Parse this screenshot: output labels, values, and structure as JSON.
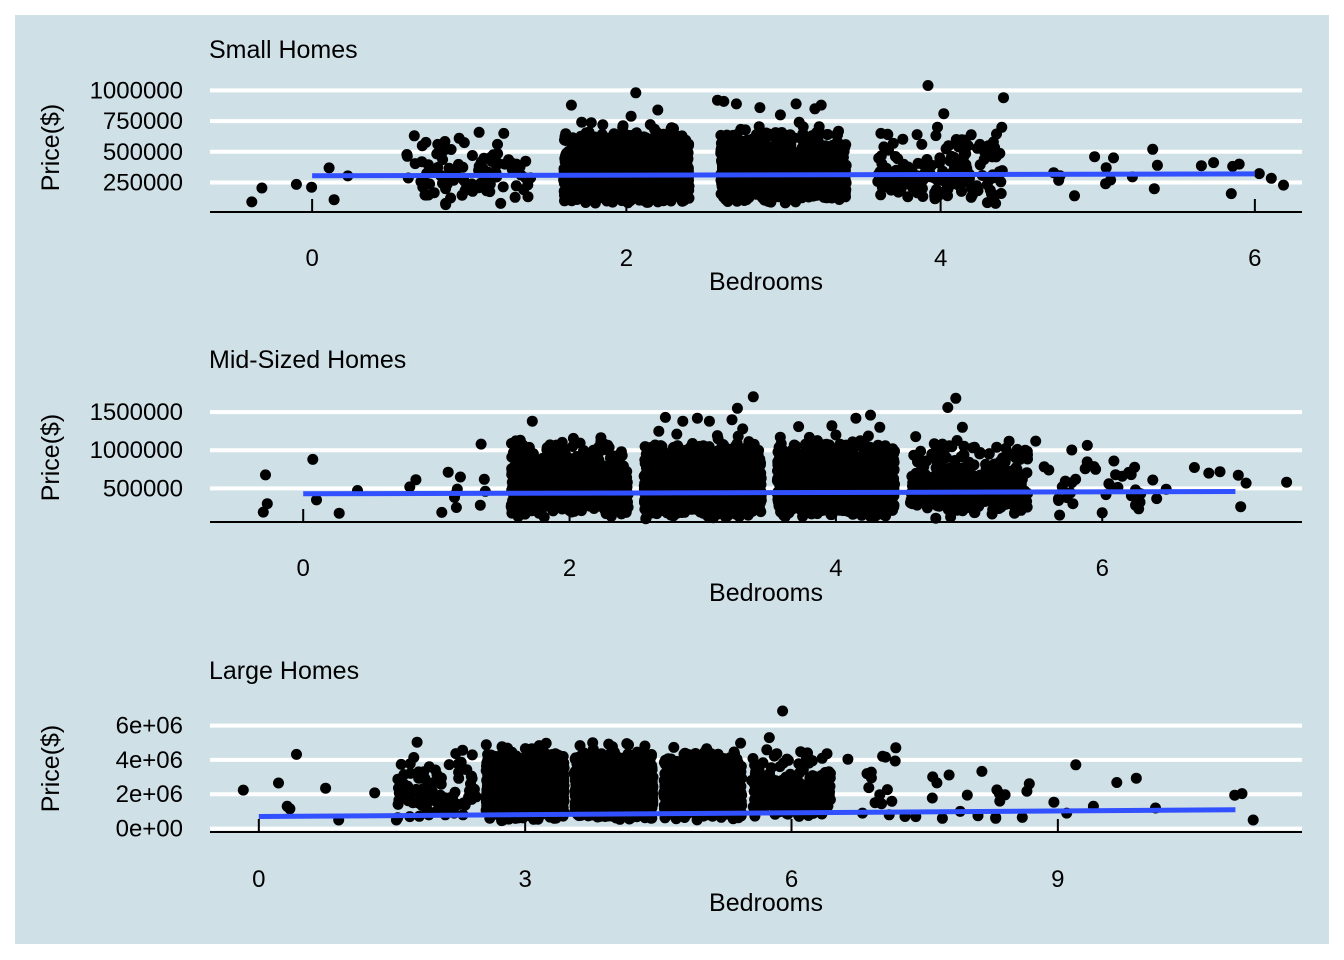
{
  "theme": {
    "panel_background": "#cfe0e7",
    "grid_color": "#ffffff",
    "point_color": "#000000",
    "trend_color": "#3150ff",
    "axis_color": "#000000"
  },
  "chart_data": [
    {
      "type": "scatter",
      "title": "Small Homes",
      "xlabel": "Bedrooms",
      "ylabel": "Price($)",
      "x_ticks": [
        "0",
        "2",
        "4",
        "6"
      ],
      "x_tick_values": [
        0,
        2,
        4,
        6
      ],
      "y_ticks": [
        "250000",
        "500000",
        "750000",
        "1000000"
      ],
      "y_tick_values": [
        250000,
        500000,
        750000,
        1000000
      ],
      "xlim": [
        -0.65,
        6.3
      ],
      "ylim": [
        10000,
        1060000
      ],
      "grid": true,
      "jitter": 0.4,
      "category_counts": [
        [
          0,
          4
        ],
        [
          1,
          90
        ],
        [
          2,
          1300
        ],
        [
          3,
          1200
        ],
        [
          4,
          160
        ],
        [
          5,
          5
        ],
        [
          6,
          6
        ]
      ],
      "trend": {
        "x": [
          0,
          6
        ],
        "y": [
          305000,
          320000
        ]
      },
      "points": [
        [
          -0.32,
          205000
        ],
        [
          -0.1,
          235000
        ],
        [
          0.14,
          110000
        ],
        [
          0.65,
          630000
        ],
        [
          0.8,
          560000
        ],
        [
          1.02,
          470000
        ],
        [
          1.18,
          560000
        ],
        [
          1.22,
          650000
        ],
        [
          1.3,
          400000
        ],
        [
          0.85,
          70000
        ],
        [
          1.2,
          80000
        ],
        [
          1.65,
          880000
        ],
        [
          1.85,
          720000
        ],
        [
          2.06,
          980000
        ],
        [
          2.03,
          790000
        ],
        [
          2.2,
          840000
        ],
        [
          2.3,
          690000
        ],
        [
          2.58,
          920000
        ],
        [
          2.62,
          910000
        ],
        [
          2.7,
          890000
        ],
        [
          2.85,
          860000
        ],
        [
          2.98,
          800000
        ],
        [
          3.08,
          890000
        ],
        [
          3.2,
          850000
        ],
        [
          3.24,
          880000
        ],
        [
          3.1,
          740000
        ],
        [
          3.62,
          650000
        ],
        [
          3.85,
          640000
        ],
        [
          3.88,
          560000
        ],
        [
          3.92,
          1040000
        ],
        [
          3.98,
          700000
        ],
        [
          4.02,
          810000
        ],
        [
          4.1,
          600000
        ],
        [
          4.25,
          560000
        ],
        [
          4.32,
          500000
        ],
        [
          4.4,
          940000
        ],
        [
          4.35,
          80000
        ],
        [
          4.72,
          330000
        ],
        [
          4.76,
          305000
        ],
        [
          4.98,
          460000
        ],
        [
          5.05,
          240000
        ],
        [
          5.1,
          450000
        ],
        [
          5.35,
          520000
        ],
        [
          5.36,
          200000
        ],
        [
          5.38,
          390000
        ],
        [
          5.85,
          160000
        ],
        [
          5.9,
          400000
        ]
      ]
    },
    {
      "type": "scatter",
      "title": "Mid-Sized Homes",
      "xlabel": "Bedrooms",
      "ylabel": "Price($)",
      "x_ticks": [
        "0",
        "2",
        "4",
        "6"
      ],
      "x_tick_values": [
        0,
        2,
        4,
        6
      ],
      "y_ticks": [
        "500000",
        "1000000",
        "1500000"
      ],
      "y_tick_values": [
        500000,
        1000000,
        1500000
      ],
      "xlim": [
        -0.7,
        7.5
      ],
      "ylim": [
        60000,
        1750000
      ],
      "grid": true,
      "jitter": 0.44,
      "category_counts": [
        [
          0,
          3
        ],
        [
          1,
          8
        ],
        [
          2,
          750
        ],
        [
          3,
          1400
        ],
        [
          4,
          1400
        ],
        [
          5,
          420
        ],
        [
          6,
          25
        ],
        [
          7,
          4
        ]
      ],
      "trend": {
        "x": [
          0,
          7
        ],
        "y": [
          430000,
          460000
        ]
      },
      "points": [
        [
          -0.3,
          190000
        ],
        [
          -0.27,
          300000
        ],
        [
          0.1,
          350000
        ],
        [
          0.27,
          175000
        ],
        [
          0.8,
          520000
        ],
        [
          1.18,
          650000
        ],
        [
          1.36,
          620000
        ],
        [
          1.33,
          280000
        ],
        [
          1.15,
          250000
        ],
        [
          1.72,
          1380000
        ],
        [
          1.63,
          1130000
        ],
        [
          2.26,
          1080000
        ],
        [
          2.18,
          1000000
        ],
        [
          2.72,
          1430000
        ],
        [
          2.85,
          1380000
        ],
        [
          2.96,
          1420000
        ],
        [
          3.05,
          1380000
        ],
        [
          3.26,
          1550000
        ],
        [
          3.38,
          1700000
        ],
        [
          3.3,
          1280000
        ],
        [
          3.22,
          1400000
        ],
        [
          2.67,
          1250000
        ],
        [
          3.72,
          1310000
        ],
        [
          3.97,
          1320000
        ],
        [
          4.15,
          1420000
        ],
        [
          4.26,
          1460000
        ],
        [
          4.33,
          1300000
        ],
        [
          4.0,
          1200000
        ],
        [
          4.72,
          950000
        ],
        [
          4.8,
          1080000
        ],
        [
          4.84,
          1560000
        ],
        [
          4.9,
          1680000
        ],
        [
          4.95,
          1300000
        ],
        [
          5.15,
          950000
        ],
        [
          5.5,
          1120000
        ],
        [
          4.75,
          110000
        ],
        [
          5.68,
          150000
        ],
        [
          5.7,
          520000
        ],
        [
          5.8,
          620000
        ],
        [
          5.95,
          750000
        ],
        [
          6.05,
          560000
        ],
        [
          6.1,
          680000
        ],
        [
          6.15,
          660000
        ],
        [
          6.25,
          480000
        ],
        [
          6.38,
          610000
        ],
        [
          6.48,
          490000
        ],
        [
          6.25,
          280000
        ],
        [
          6.8,
          700000
        ],
        [
          7.08,
          570000
        ],
        [
          7.04,
          260000
        ],
        [
          6.0,
          180000
        ],
        [
          5.78,
          300000
        ]
      ]
    },
    {
      "type": "scatter",
      "title": "Large Homes",
      "xlabel": "Bedrooms",
      "ylabel": "Price($)",
      "x_ticks": [
        "0",
        "3",
        "6",
        "9"
      ],
      "x_tick_values": [
        0,
        3,
        6,
        9
      ],
      "y_ticks": [
        "0e+00",
        "2e+06",
        "4e+06",
        "6e+06"
      ],
      "y_tick_values": [
        0,
        2000000,
        4000000,
        6000000
      ],
      "xlim": [
        -0.55,
        11.75
      ],
      "ylim": [
        -200000,
        7200000
      ],
      "grid": true,
      "jitter": 0.44,
      "category_counts": [
        [
          0,
          3
        ],
        [
          1,
          2
        ],
        [
          2,
          80
        ],
        [
          3,
          1400
        ],
        [
          4,
          1600
        ],
        [
          5,
          700
        ],
        [
          6,
          240
        ],
        [
          7,
          14
        ],
        [
          8,
          10
        ],
        [
          9,
          4
        ],
        [
          10,
          2
        ],
        [
          11,
          2
        ]
      ],
      "trend": {
        "x": [
          0,
          11
        ],
        "y": [
          700000,
          1100000
        ]
      },
      "points": [
        [
          0.32,
          1300000
        ],
        [
          0.35,
          1150000
        ],
        [
          0.9,
          500000
        ],
        [
          1.55,
          500000
        ],
        [
          1.7,
          700000
        ],
        [
          1.9,
          1500000
        ],
        [
          2.0,
          1000000
        ],
        [
          2.1,
          800000
        ],
        [
          2.3,
          800000
        ],
        [
          2.45,
          1850000
        ],
        [
          1.8,
          3300000
        ],
        [
          2.25,
          1400000
        ],
        [
          2.2,
          900000
        ],
        [
          2.75,
          2950000
        ],
        [
          3.1,
          3650000
        ],
        [
          3.25,
          3800000
        ],
        [
          2.62,
          2300000
        ],
        [
          3.4,
          1850000
        ],
        [
          3.55,
          3200000
        ],
        [
          4.1,
          3650000
        ],
        [
          4.2,
          3400000
        ],
        [
          3.85,
          3050000
        ],
        [
          4.3,
          2850000
        ],
        [
          4.72,
          3150000
        ],
        [
          4.88,
          3500000
        ],
        [
          4.95,
          3300000
        ],
        [
          5.05,
          4500000
        ],
        [
          5.15,
          3800000
        ],
        [
          5.3,
          3100000
        ],
        [
          5.05,
          2900000
        ],
        [
          5.55,
          2800000
        ],
        [
          5.62,
          1750000
        ],
        [
          5.75,
          5300000
        ],
        [
          5.9,
          6850000
        ],
        [
          5.95,
          2100000
        ],
        [
          6.1,
          1500000
        ],
        [
          6.25,
          2200000
        ],
        [
          6.3,
          1600000
        ],
        [
          6.85,
          3200000
        ],
        [
          6.9,
          2950000
        ],
        [
          6.8,
          900000
        ],
        [
          7.1,
          800000
        ],
        [
          7.4,
          700000
        ],
        [
          7.7,
          600000
        ],
        [
          7.9,
          1000000
        ],
        [
          7.98,
          1950000
        ],
        [
          8.1,
          750000
        ],
        [
          8.3,
          600000
        ],
        [
          8.6,
          650000
        ],
        [
          9.1,
          900000
        ],
        [
          9.4,
          1300000
        ],
        [
          10.1,
          1200000
        ],
        [
          11.2,
          500000
        ]
      ]
    }
  ]
}
